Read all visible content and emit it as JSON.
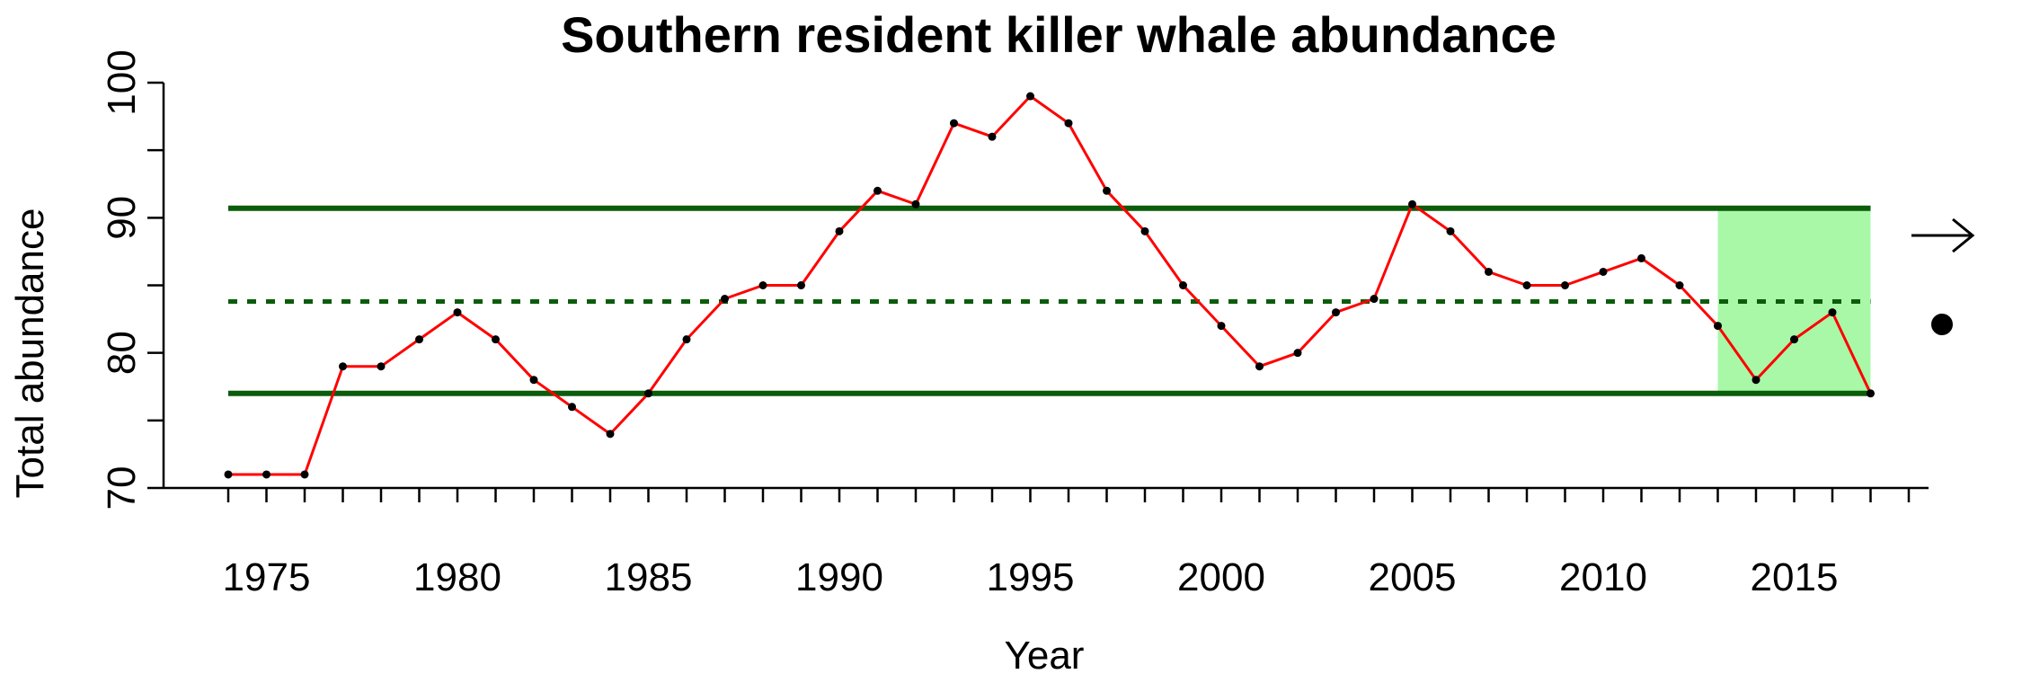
{
  "chart_data": {
    "type": "line",
    "title": "Southern resident killer whale abundance",
    "xlabel": "Year",
    "ylabel": "Total abundance",
    "xlim": [
      1972,
      2019
    ],
    "ylim": [
      70,
      100
    ],
    "x_ticks": [
      1975,
      1980,
      1985,
      1990,
      1995,
      2000,
      2005,
      2010,
      2015
    ],
    "x_minor_ticks_start": 1974,
    "x_minor_ticks_end": 2018,
    "y_ticks": [
      70,
      80,
      90,
      100
    ],
    "y_minor_ticks": [
      75,
      85,
      95
    ],
    "grid": false,
    "series": [
      {
        "color": "#ff0000",
        "point_color": "#000000",
        "x": [
          1974,
          1975,
          1976,
          1977,
          1978,
          1979,
          1980,
          1981,
          1982,
          1983,
          1984,
          1985,
          1986,
          1987,
          1988,
          1989,
          1990,
          1991,
          1992,
          1993,
          1994,
          1995,
          1996,
          1997,
          1998,
          1999,
          2000,
          2001,
          2002,
          2003,
          2004,
          2005,
          2006,
          2007,
          2008,
          2009,
          2010,
          2011,
          2012,
          2013,
          2014,
          2015,
          2016,
          2017
        ],
        "values": [
          71,
          71,
          71,
          79,
          79,
          81,
          83,
          81,
          78,
          76,
          74,
          77,
          81,
          84,
          85,
          85,
          89,
          92,
          91,
          97,
          96,
          99,
          97,
          92,
          89,
          85,
          82,
          79,
          80,
          83,
          84,
          91,
          89,
          86,
          85,
          85,
          86,
          87,
          85,
          82,
          78,
          81,
          83,
          77
        ]
      }
    ],
    "reference_lines": {
      "color": "#0b5c0b",
      "mean": 83.8,
      "upper": 90.7,
      "lower": 77.0
    },
    "highlight_region": {
      "x_start": 2013,
      "x_end": 2017,
      "color": "#a8f8a8"
    },
    "trend_indicator": {
      "arrow": "right",
      "symbol": "filled-circle"
    }
  }
}
